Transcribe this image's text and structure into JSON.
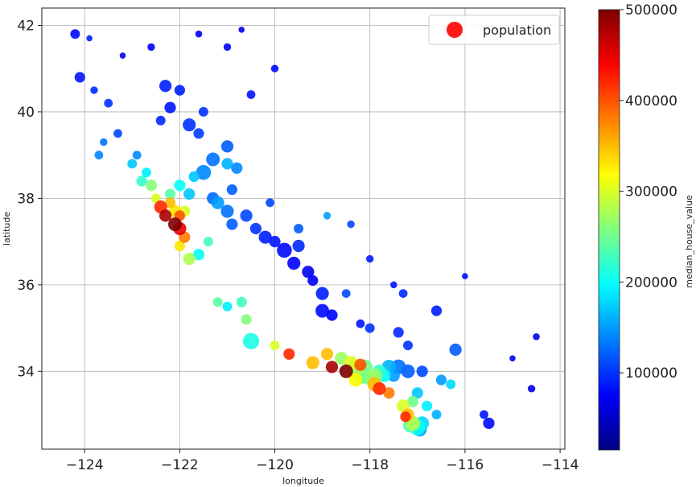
{
  "chart_data": {
    "type": "scatter",
    "title": "",
    "xlabel": "longitude",
    "ylabel": "latitude",
    "xlim": [
      -124.9,
      -113.9
    ],
    "ylim": [
      32.2,
      42.4
    ],
    "x_ticks": [
      -124,
      -122,
      -120,
      -118,
      -116,
      -114
    ],
    "x_tick_labels": [
      "−124",
      "−122",
      "−120",
      "−118",
      "−116",
      "−114"
    ],
    "y_ticks": [
      34,
      36,
      38,
      40,
      42
    ],
    "y_tick_labels": [
      "34",
      "36",
      "38",
      "40",
      "42"
    ],
    "grid": true,
    "legend": {
      "placement": "top-right",
      "entries": [
        "population"
      ],
      "marker_color": "#ff1a1a"
    },
    "colorbar": {
      "label": "median_house_value",
      "min": 15000,
      "max": 500000,
      "ticks": [
        100000,
        200000,
        300000,
        400000,
        500000
      ],
      "tick_labels": [
        "100000",
        "200000",
        "300000",
        "400000",
        "500000"
      ],
      "colormap": "jet"
    },
    "colormap_stops": [
      "#00007f",
      "#0000ff",
      "#007fff",
      "#00ffff",
      "#7fff7f",
      "#ffff00",
      "#ff7f00",
      "#ff0000",
      "#7f0000"
    ],
    "series_name": "population",
    "size_encodes": "population",
    "color_encodes": "median_house_value",
    "points": [
      [
        -124.2,
        41.8,
        80000,
        50
      ],
      [
        -123.9,
        41.7,
        90000,
        20
      ],
      [
        -124.1,
        40.8,
        85000,
        60
      ],
      [
        -123.8,
        40.5,
        95000,
        30
      ],
      [
        -123.3,
        39.5,
        110000,
        40
      ],
      [
        -123.6,
        39.3,
        130000,
        30
      ],
      [
        -123.2,
        41.3,
        70000,
        20
      ],
      [
        -122.6,
        41.5,
        75000,
        30
      ],
      [
        -122.3,
        40.6,
        90000,
        80
      ],
      [
        -122.2,
        40.1,
        85000,
        70
      ],
      [
        -121.8,
        39.7,
        100000,
        90
      ],
      [
        -121.6,
        39.5,
        105000,
        60
      ],
      [
        -121.3,
        38.9,
        130000,
        100
      ],
      [
        -121.5,
        38.6,
        140000,
        120
      ],
      [
        -121.0,
        38.8,
        160000,
        70
      ],
      [
        -120.9,
        38.2,
        120000,
        60
      ],
      [
        -121.2,
        37.9,
        150000,
        90
      ],
      [
        -120.6,
        37.6,
        110000,
        80
      ],
      [
        -120.9,
        37.4,
        120000,
        70
      ],
      [
        -120.2,
        37.1,
        90000,
        90
      ],
      [
        -119.8,
        36.8,
        80000,
        120
      ],
      [
        -119.6,
        36.5,
        75000,
        90
      ],
      [
        -119.3,
        36.3,
        70000,
        80
      ],
      [
        -119.2,
        36.1,
        72000,
        60
      ],
      [
        -119.0,
        35.4,
        80000,
        100
      ],
      [
        -118.8,
        35.3,
        75000,
        70
      ],
      [
        -118.2,
        35.1,
        85000,
        40
      ],
      [
        -117.4,
        34.9,
        95000,
        60
      ],
      [
        -117.2,
        34.6,
        100000,
        50
      ],
      [
        -116.6,
        35.4,
        90000,
        60
      ],
      [
        -116.2,
        34.5,
        120000,
        80
      ],
      [
        -115.5,
        32.8,
        80000,
        70
      ],
      [
        -115.6,
        33.0,
        85000,
        40
      ],
      [
        -114.6,
        33.6,
        70000,
        30
      ],
      [
        -114.5,
        34.8,
        65000,
        25
      ],
      [
        -122.4,
        37.8,
        420000,
        90
      ],
      [
        -122.3,
        37.6,
        480000,
        80
      ],
      [
        -122.1,
        37.4,
        500000,
        100
      ],
      [
        -122.0,
        37.3,
        450000,
        90
      ],
      [
        -121.9,
        37.1,
        380000,
        70
      ],
      [
        -122.2,
        37.9,
        350000,
        60
      ],
      [
        -122.5,
        38.0,
        300000,
        50
      ],
      [
        -122.6,
        38.3,
        260000,
        70
      ],
      [
        -122.8,
        38.4,
        220000,
        60
      ],
      [
        -122.0,
        36.9,
        330000,
        60
      ],
      [
        -121.8,
        36.6,
        280000,
        80
      ],
      [
        -121.2,
        35.6,
        240000,
        50
      ],
      [
        -120.6,
        35.2,
        260000,
        60
      ],
      [
        -120.0,
        34.6,
        300000,
        50
      ],
      [
        -119.7,
        34.4,
        420000,
        70
      ],
      [
        -119.2,
        34.2,
        350000,
        90
      ],
      [
        -118.8,
        34.1,
        480000,
        80
      ],
      [
        -118.5,
        34.0,
        500000,
        100
      ],
      [
        -118.3,
        34.05,
        280000,
        150
      ],
      [
        -118.2,
        33.9,
        220000,
        140
      ],
      [
        -118.0,
        33.85,
        260000,
        120
      ],
      [
        -117.9,
        33.7,
        350000,
        110
      ],
      [
        -117.8,
        33.6,
        420000,
        90
      ],
      [
        -117.6,
        33.5,
        380000,
        70
      ],
      [
        -117.3,
        33.2,
        300000,
        90
      ],
      [
        -117.1,
        32.8,
        280000,
        120
      ],
      [
        -117.0,
        32.7,
        200000,
        130
      ],
      [
        -116.9,
        32.8,
        180000,
        100
      ],
      [
        -117.2,
        33.0,
        350000,
        80
      ],
      [
        -117.4,
        34.1,
        130000,
        120
      ],
      [
        -117.2,
        34.0,
        120000,
        100
      ],
      [
        -116.9,
        34.0,
        110000,
        70
      ],
      [
        -116.5,
        33.8,
        150000,
        60
      ],
      [
        -116.3,
        33.7,
        180000,
        50
      ],
      [
        -117.6,
        34.1,
        160000,
        110
      ],
      [
        -117.8,
        34.0,
        220000,
        100
      ],
      [
        -118.1,
        34.1,
        250000,
        120
      ],
      [
        -118.4,
        34.2,
        300000,
        100
      ],
      [
        -118.6,
        34.3,
        270000,
        90
      ],
      [
        -118.9,
        34.4,
        350000,
        80
      ],
      [
        -120.5,
        34.7,
        210000,
        140
      ],
      [
        -121.0,
        35.5,
        190000,
        50
      ],
      [
        -120.7,
        35.6,
        230000,
        60
      ],
      [
        -121.6,
        36.7,
        200000,
        70
      ],
      [
        -121.4,
        37.0,
        230000,
        50
      ],
      [
        -120.1,
        37.9,
        110000,
        40
      ],
      [
        -121.0,
        39.2,
        120000,
        80
      ],
      [
        -120.8,
        38.7,
        140000,
        70
      ],
      [
        -121.7,
        38.5,
        170000,
        60
      ],
      [
        -122.0,
        38.3,
        200000,
        70
      ],
      [
        -122.2,
        38.1,
        240000,
        60
      ],
      [
        -122.7,
        38.6,
        190000,
        50
      ],
      [
        -123.0,
        38.8,
        170000,
        50
      ],
      [
        -122.9,
        39.0,
        140000,
        40
      ],
      [
        -122.4,
        39.8,
        95000,
        50
      ],
      [
        -122.0,
        40.5,
        90000,
        60
      ],
      [
        -121.5,
        40.0,
        100000,
        50
      ],
      [
        -120.5,
        40.4,
        85000,
        40
      ],
      [
        -120.0,
        41.0,
        80000,
        30
      ],
      [
        -121.0,
        41.5,
        75000,
        30
      ],
      [
        -121.6,
        41.8,
        70000,
        25
      ],
      [
        -120.7,
        41.9,
        65000,
        20
      ],
      [
        -123.5,
        40.2,
        100000,
        40
      ],
      [
        -123.7,
        39.0,
        140000,
        40
      ],
      [
        -119.5,
        37.3,
        120000,
        50
      ],
      [
        -118.9,
        37.6,
        150000,
        30
      ],
      [
        -118.4,
        37.4,
        110000,
        30
      ],
      [
        -118.0,
        36.6,
        90000,
        30
      ],
      [
        -117.5,
        36.0,
        85000,
        25
      ],
      [
        -116.0,
        36.2,
        80000,
        20
      ],
      [
        -115.0,
        34.3,
        70000,
        20
      ],
      [
        -117.3,
        35.8,
        95000,
        40
      ],
      [
        -118.0,
        35.0,
        100000,
        50
      ],
      [
        -118.5,
        35.8,
        110000,
        40
      ],
      [
        -119.0,
        35.8,
        90000,
        90
      ],
      [
        -119.5,
        36.9,
        95000,
        80
      ],
      [
        -120.0,
        37.0,
        85000,
        70
      ],
      [
        -120.4,
        37.3,
        100000,
        70
      ],
      [
        -121.0,
        37.7,
        130000,
        90
      ],
      [
        -121.3,
        38.0,
        125000,
        80
      ],
      [
        -121.8,
        38.1,
        170000,
        70
      ],
      [
        -121.9,
        37.7,
        300000,
        70
      ],
      [
        -122.0,
        37.6,
        400000,
        60
      ],
      [
        -122.1,
        37.7,
        330000,
        80
      ],
      [
        -118.1,
        33.9,
        230000,
        130
      ],
      [
        -117.9,
        33.9,
        270000,
        110
      ],
      [
        -118.3,
        33.8,
        320000,
        100
      ],
      [
        -118.2,
        34.15,
        400000,
        80
      ],
      [
        -117.7,
        33.9,
        200000,
        90
      ],
      [
        -117.5,
        33.9,
        150000,
        80
      ],
      [
        -117.0,
        33.5,
        170000,
        70
      ],
      [
        -116.8,
        33.2,
        190000,
        60
      ],
      [
        -116.6,
        33.0,
        160000,
        50
      ],
      [
        -117.1,
        33.3,
        250000,
        70
      ],
      [
        -117.25,
        32.95,
        420000,
        60
      ],
      [
        -117.15,
        32.75,
        230000,
        110
      ],
      [
        -116.95,
        32.65,
        150000,
        100
      ]
    ]
  }
}
